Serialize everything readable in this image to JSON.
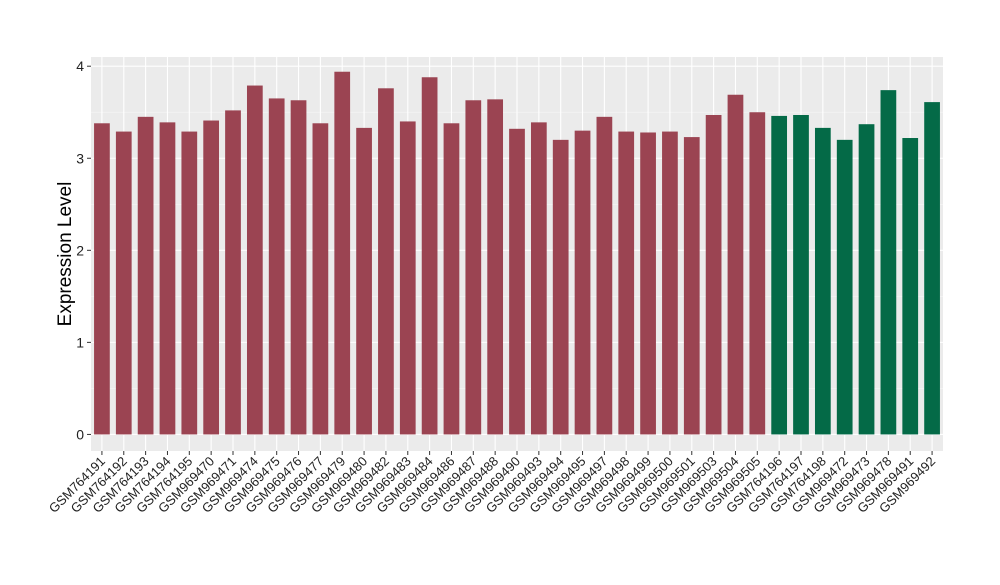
{
  "chart_data": {
    "type": "bar",
    "ylabel": "Expression Level",
    "ylim": [
      -0.18,
      4.1
    ],
    "yticks": [
      0,
      1,
      2,
      3,
      4
    ],
    "grid": true,
    "background": "#ebebeb",
    "group_colors": {
      "a": "#9b4452",
      "b": "#046a47"
    },
    "categories": [
      "GSM764191",
      "GSM764192",
      "GSM764193",
      "GSM764194",
      "GSM764195",
      "GSM969470",
      "GSM969471",
      "GSM969474",
      "GSM969475",
      "GSM969476",
      "GSM969477",
      "GSM969479",
      "GSM969480",
      "GSM969482",
      "GSM969483",
      "GSM969484",
      "GSM969486",
      "GSM969487",
      "GSM969488",
      "GSM969490",
      "GSM969493",
      "GSM969494",
      "GSM969495",
      "GSM969497",
      "GSM969498",
      "GSM969499",
      "GSM969500",
      "GSM969501",
      "GSM969503",
      "GSM969504",
      "GSM969505",
      "GSM764196",
      "GSM764197",
      "GSM764198",
      "GSM969472",
      "GSM969473",
      "GSM969478",
      "GSM969491",
      "GSM969492"
    ],
    "values": [
      3.38,
      3.29,
      3.45,
      3.39,
      3.29,
      3.41,
      3.52,
      3.79,
      3.65,
      3.63,
      3.38,
      3.94,
      3.33,
      3.76,
      3.4,
      3.88,
      3.38,
      3.63,
      3.64,
      3.32,
      3.39,
      3.2,
      3.3,
      3.45,
      3.29,
      3.28,
      3.29,
      3.23,
      3.47,
      3.69,
      3.5,
      3.46,
      3.47,
      3.33,
      3.2,
      3.37,
      3.74,
      3.22,
      3.61
    ],
    "groups": [
      "a",
      "a",
      "a",
      "a",
      "a",
      "a",
      "a",
      "a",
      "a",
      "a",
      "a",
      "a",
      "a",
      "a",
      "a",
      "a",
      "a",
      "a",
      "a",
      "a",
      "a",
      "a",
      "a",
      "a",
      "a",
      "a",
      "a",
      "a",
      "a",
      "a",
      "a",
      "b",
      "b",
      "b",
      "b",
      "b",
      "b",
      "b",
      "b"
    ]
  }
}
